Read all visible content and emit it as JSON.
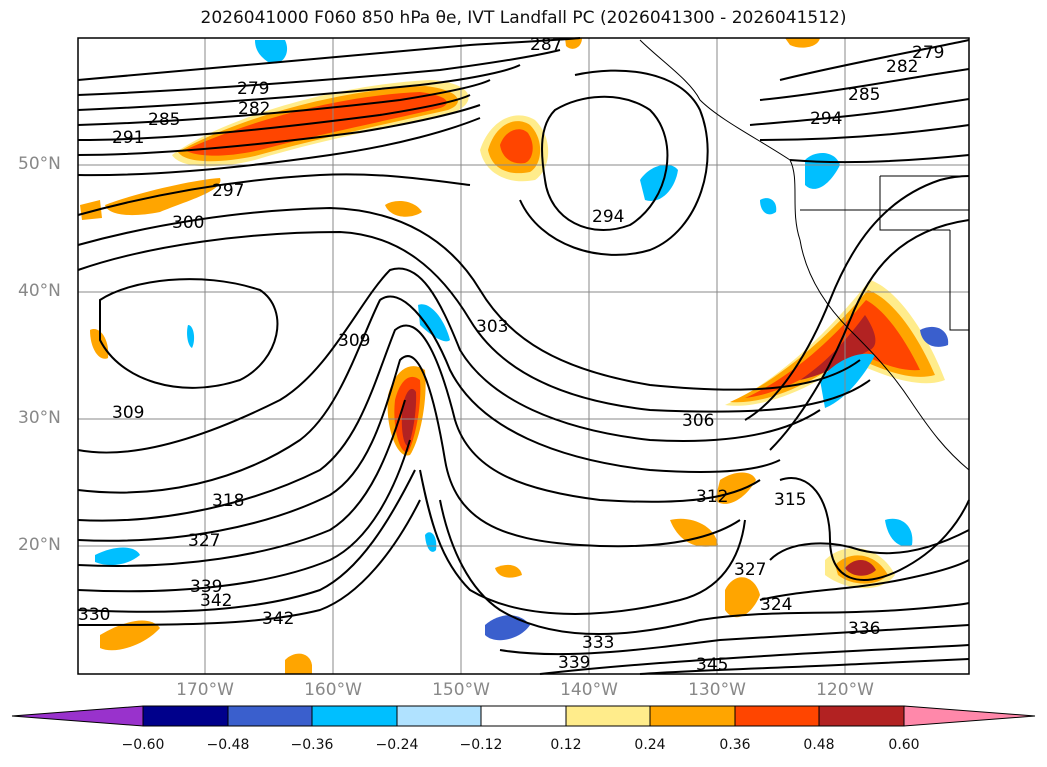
{
  "title": "2026041000 F060 850 hPa θe, IVT Landfall PC (2026041300 - 2026041512)",
  "lat_labels": [
    "50°N",
    "40°N",
    "30°N",
    "20°N"
  ],
  "lon_labels": [
    "170°W",
    "160°W",
    "150°W",
    "140°W",
    "130°W",
    "120°W"
  ],
  "colorbar": {
    "ticks": [
      "−0.60",
      "−0.48",
      "−0.36",
      "−0.24",
      "−0.12",
      "0.12",
      "0.24",
      "0.36",
      "0.48",
      "0.60"
    ],
    "colors": [
      "#9932cc",
      "#00008b",
      "#3a5fcd",
      "#00bfff",
      "#b0e2ff",
      "#ffffff",
      "#ffec8b",
      "#ffa500",
      "#ff4500",
      "#b22222",
      "#ff88aa"
    ]
  },
  "contour_labels": [
    "279",
    "282",
    "285",
    "291",
    "297",
    "300",
    "309",
    "303",
    "306",
    "294",
    "282",
    "279",
    "285",
    "294",
    "309",
    "318",
    "327",
    "339",
    "342",
    "342",
    "330",
    "333",
    "339",
    "345",
    "324",
    "336",
    "327",
    "315",
    "312",
    "287"
  ]
}
